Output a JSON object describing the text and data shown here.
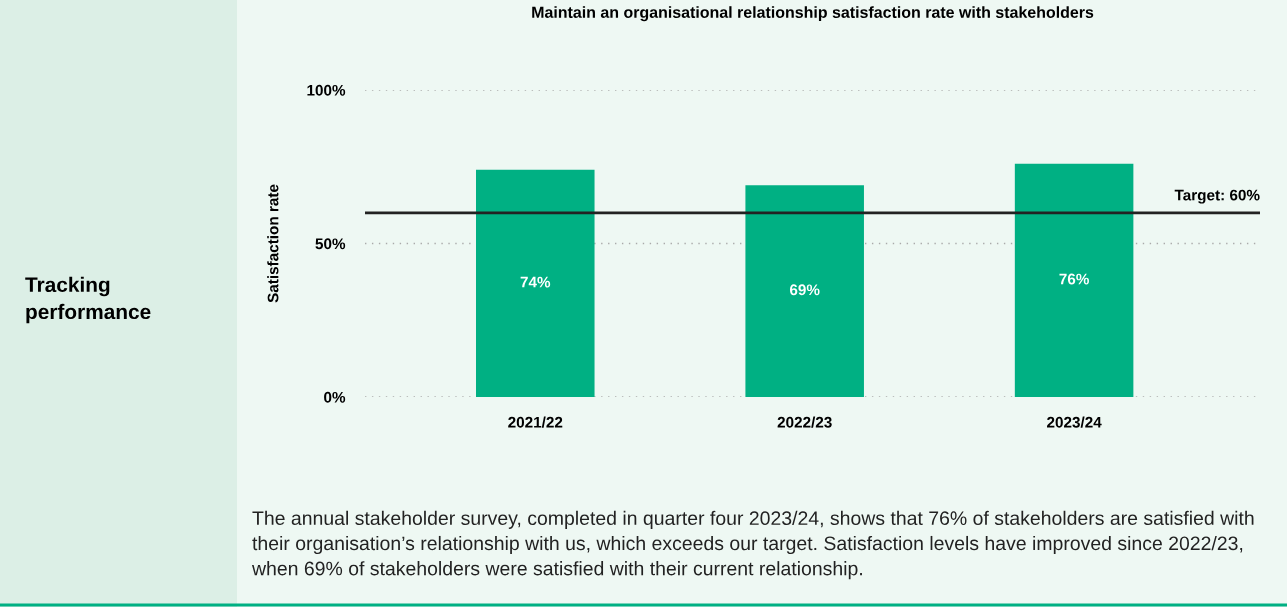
{
  "chart_data": {
    "type": "bar",
    "title": "Maintain an organisational relationship satisfaction rate with stakeholders",
    "ylabel": "Satisfaction rate",
    "categories": [
      "2021/22",
      "2022/23",
      "2023/24"
    ],
    "values": [
      74,
      69,
      76
    ],
    "color": "#00b083",
    "value_labels": [
      "74%",
      "69%",
      "76%"
    ],
    "ylim": [
      0,
      100
    ],
    "yticks": [
      {
        "value": 0,
        "label": "0%"
      },
      {
        "value": 50,
        "label": "50%"
      },
      {
        "value": 100,
        "label": "100%"
      }
    ],
    "grid": "y",
    "ref_lines": [
      {
        "axis": "y",
        "value": 60,
        "label": "Target: 60%",
        "color": "#222222",
        "line_style": "solid"
      }
    ],
    "annotations": [
      "Tracking performance",
      "The annual stakeholder survey, completed in quarter four 2023/24, shows that 76% of stakeholders are satisfied with their organisation’s relationship with us, which exceeds our target. Satisfaction levels have improved since 2022/23, when 69% of stakeholders were satisfied with their current relationship."
    ]
  }
}
